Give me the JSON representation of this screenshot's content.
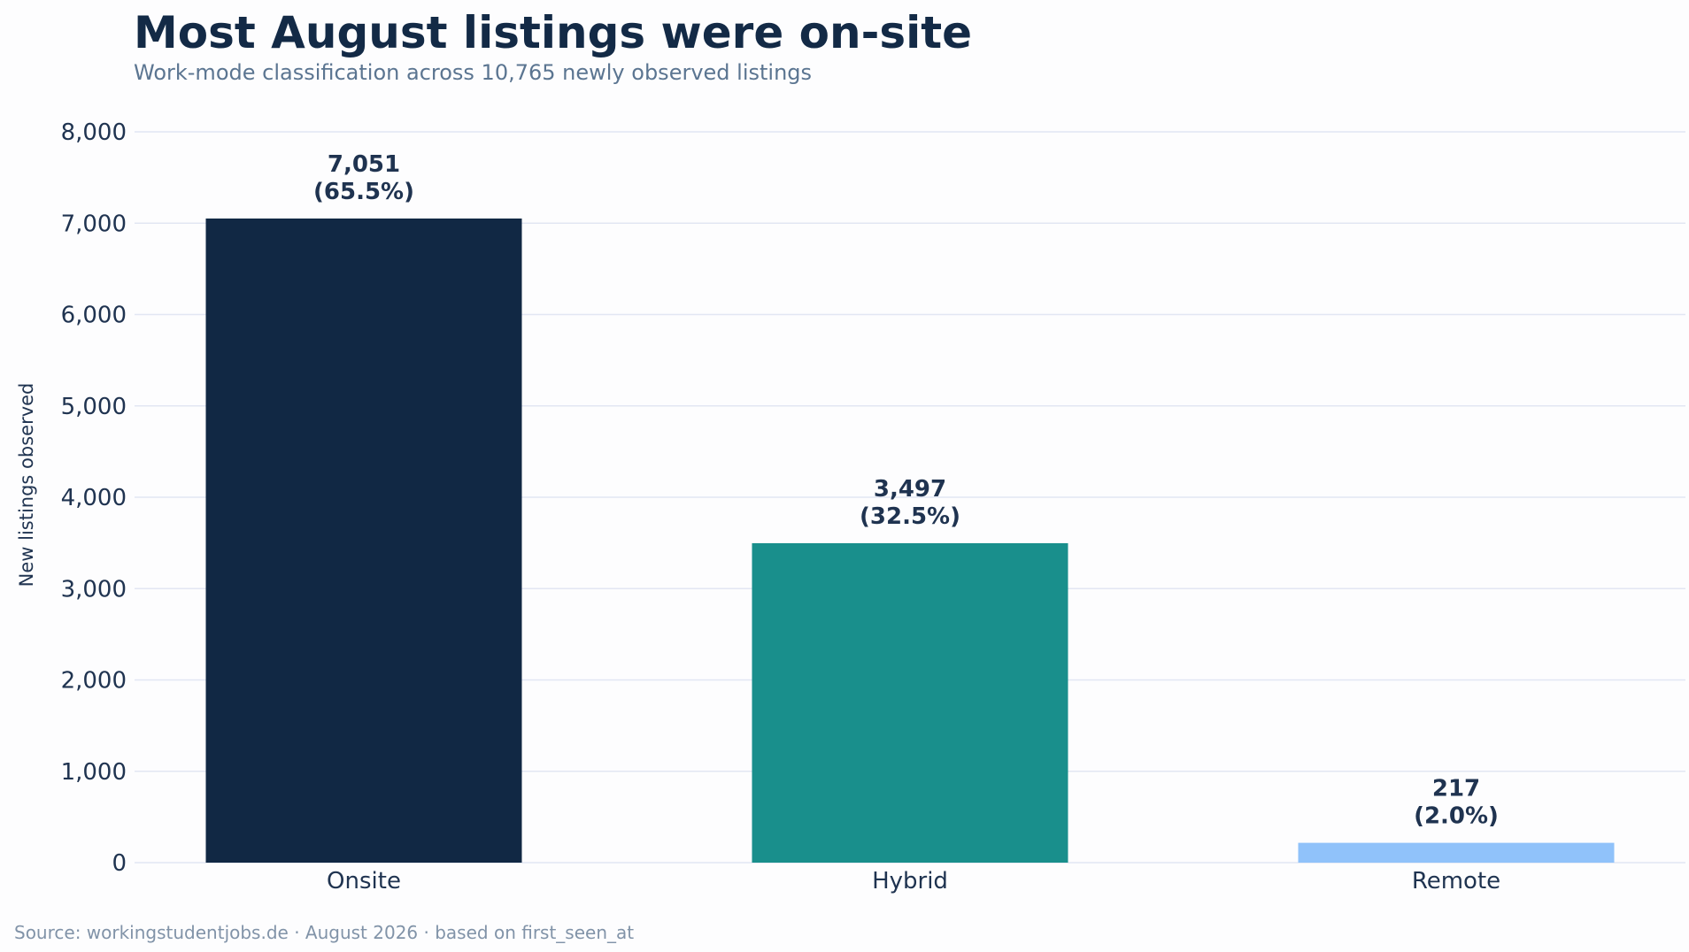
{
  "chart_data": {
    "type": "bar",
    "title": "Most August listings were on-site",
    "subtitle": "Work-mode classification across 10,765 newly observed listings",
    "xlabel": "",
    "ylabel": "New listings observed",
    "categories": [
      "Onsite",
      "Hybrid",
      "Remote"
    ],
    "values": [
      7051,
      3497,
      217
    ],
    "value_labels": [
      "7,051",
      "3,497",
      "217"
    ],
    "percent_labels": [
      "(65.5%)",
      "(32.5%)",
      "(2.0%)"
    ],
    "colors": [
      "#112844",
      "#198f8c",
      "#90c2fa"
    ],
    "ylim": [
      0,
      8000
    ],
    "yticks": [
      0,
      1000,
      2000,
      3000,
      4000,
      5000,
      6000,
      7000,
      8000
    ],
    "ytick_labels": [
      "0",
      "1,000",
      "2,000",
      "3,000",
      "4,000",
      "5,000",
      "6,000",
      "7,000",
      "8,000"
    ],
    "grid": true,
    "legend": "none",
    "source": "Source: workingstudentjobs.de · August 2026 · based on first_seen_at"
  }
}
